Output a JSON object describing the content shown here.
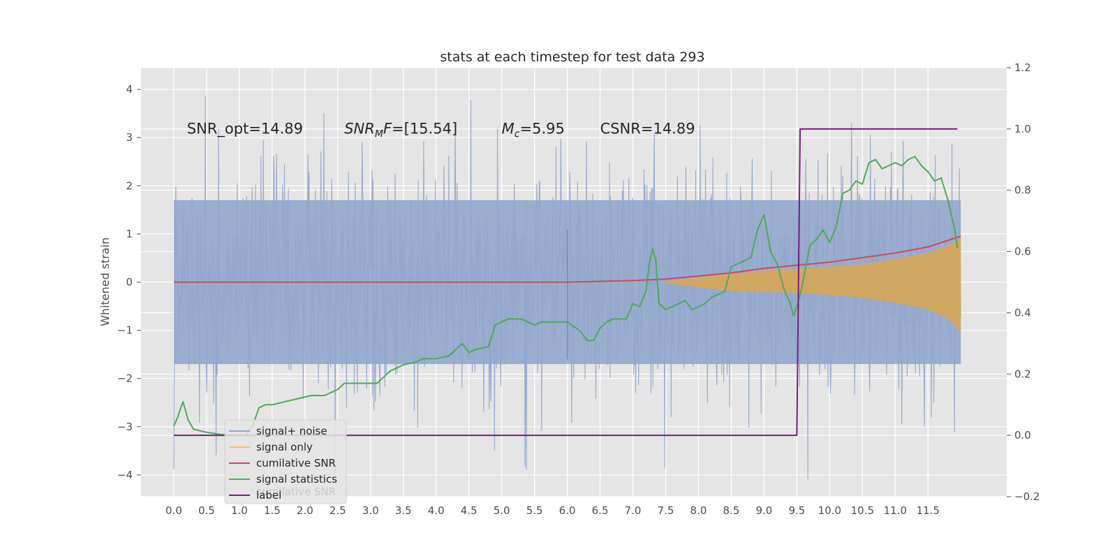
{
  "chart_data": {
    "type": "line",
    "title": "stats at each timestep for test data 293",
    "ylabel": "Whitened strain",
    "xlabel": "",
    "xlim": [
      -0.5,
      12.7
    ],
    "ylim": [
      -4.45,
      4.45
    ],
    "y2lim": [
      -0.2,
      1.2
    ],
    "x_ticks": [
      "0.0",
      "0.5",
      "1.0",
      "1.5",
      "2.0",
      "2.5",
      "3.0",
      "3.5",
      "4.0",
      "4.5",
      "5.0",
      "5.5",
      "6.0",
      "6.5",
      "7.0",
      "7.5",
      "8.0",
      "8.5",
      "9.0",
      "9.5",
      "10.0",
      "10.5",
      "11.0",
      "11.5"
    ],
    "y_ticks": [
      "4",
      "3",
      "2",
      "1",
      "0",
      "−1",
      "−2",
      "−3",
      "−4"
    ],
    "y2_ticks": [
      "1.2",
      "1.0",
      "0.8",
      "0.6",
      "0.4",
      "0.2",
      "0.0",
      "−0.2"
    ],
    "annotations": [
      {
        "label": "SNR_opt=14.89",
        "x": 0.2,
        "y": 3.2
      },
      {
        "label": "SNR_MF=[15.54]",
        "x": 2.6,
        "y": 3.2
      },
      {
        "label": "M_c=5.95",
        "x": 5.0,
        "y": 3.2
      },
      {
        "label": "CSNR=14.89",
        "x": 6.5,
        "y": 3.2
      }
    ],
    "legend": {
      "position": "lower-left",
      "entries": [
        {
          "label": "signal+ noise",
          "color": "#92a7cc"
        },
        {
          "label": "signal only",
          "color": "#f5c842"
        },
        {
          "label": "cumilative SNR",
          "color": "#d1494e"
        },
        {
          "label": "signal statistics",
          "color": "#4fa95a"
        },
        {
          "label": "label",
          "color": "#7a1a80"
        }
      ],
      "ghost_text": "cumilative SNR"
    },
    "grid": true,
    "series": [
      {
        "name": "signal+ noise",
        "axis": "left",
        "kind": "noise-band",
        "x_range": [
          0.0,
          12.0
        ],
        "typical_peak": 2.4,
        "spike_max": 4.1,
        "spike_min": -4.1,
        "center_line_x": 6.0,
        "center_line_range": [
          -1.6,
          1.1
        ]
      },
      {
        "name": "signal only",
        "axis": "left",
        "kind": "chirp-envelope",
        "x": [
          7.5,
          8.0,
          8.5,
          9.0,
          9.5,
          10.0,
          10.5,
          11.0,
          11.5,
          11.8,
          12.0
        ],
        "upper": [
          0.02,
          0.1,
          0.18,
          0.24,
          0.28,
          0.32,
          0.38,
          0.48,
          0.62,
          0.76,
          0.92
        ],
        "lower": [
          -0.02,
          -0.1,
          -0.18,
          -0.2,
          -0.22,
          -0.26,
          -0.32,
          -0.42,
          -0.56,
          -0.75,
          -1.05
        ]
      },
      {
        "name": "cumilative SNR",
        "axis": "right",
        "x": [
          0.0,
          6.0,
          7.0,
          7.5,
          8.0,
          8.5,
          9.0,
          9.5,
          10.0,
          10.5,
          11.0,
          11.5,
          12.0
        ],
        "values": [
          0.5,
          0.5,
          0.505,
          0.51,
          0.52,
          0.53,
          0.545,
          0.555,
          0.565,
          0.58,
          0.595,
          0.615,
          0.65
        ]
      },
      {
        "name": "signal statistics",
        "axis": "right",
        "x": [
          0.0,
          0.06,
          0.14,
          0.22,
          0.3,
          0.5,
          0.8,
          1.1,
          1.2,
          1.3,
          1.4,
          1.5,
          1.7,
          1.9,
          2.1,
          2.3,
          2.5,
          2.6,
          2.9,
          3.1,
          3.2,
          3.3,
          3.5,
          3.7,
          3.8,
          4.0,
          4.2,
          4.4,
          4.5,
          4.6,
          4.8,
          4.9,
          5.1,
          5.3,
          5.5,
          5.6,
          5.8,
          6.0,
          6.2,
          6.3,
          6.4,
          6.5,
          6.6,
          6.7,
          6.8,
          6.9,
          7.0,
          7.1,
          7.2,
          7.25,
          7.3,
          7.35,
          7.4,
          7.5,
          7.6,
          7.7,
          7.8,
          7.9,
          8.0,
          8.1,
          8.2,
          8.4,
          8.5,
          8.6,
          8.7,
          8.8,
          8.9,
          9.0,
          9.1,
          9.2,
          9.3,
          9.4,
          9.45,
          9.5,
          9.55,
          9.6,
          9.7,
          9.8,
          9.9,
          10.0,
          10.1,
          10.2,
          10.3,
          10.4,
          10.5,
          10.6,
          10.7,
          10.8,
          10.9,
          11.0,
          11.1,
          11.2,
          11.3,
          11.4,
          11.5,
          11.6,
          11.7,
          11.8,
          11.9,
          11.95
        ],
        "values": [
          0.03,
          0.06,
          0.11,
          0.05,
          0.02,
          0.01,
          0.0,
          0.0,
          0.03,
          0.09,
          0.1,
          0.1,
          0.11,
          0.12,
          0.13,
          0.13,
          0.15,
          0.17,
          0.17,
          0.17,
          0.19,
          0.21,
          0.23,
          0.24,
          0.25,
          0.25,
          0.26,
          0.3,
          0.27,
          0.28,
          0.29,
          0.36,
          0.38,
          0.38,
          0.36,
          0.37,
          0.37,
          0.37,
          0.34,
          0.31,
          0.31,
          0.35,
          0.37,
          0.38,
          0.38,
          0.38,
          0.43,
          0.42,
          0.47,
          0.56,
          0.61,
          0.57,
          0.43,
          0.41,
          0.42,
          0.43,
          0.44,
          0.41,
          0.42,
          0.43,
          0.45,
          0.47,
          0.55,
          0.56,
          0.57,
          0.58,
          0.67,
          0.72,
          0.6,
          0.56,
          0.48,
          0.43,
          0.39,
          0.42,
          0.46,
          0.51,
          0.62,
          0.64,
          0.67,
          0.63,
          0.68,
          0.79,
          0.8,
          0.83,
          0.82,
          0.89,
          0.9,
          0.87,
          0.88,
          0.89,
          0.88,
          0.9,
          0.91,
          0.88,
          0.86,
          0.83,
          0.84,
          0.77,
          0.68,
          0.61
        ]
      },
      {
        "name": "label",
        "axis": "right",
        "x": [
          0.0,
          9.5,
          9.55,
          11.95
        ],
        "values": [
          0.0,
          0.0,
          1.0,
          1.0
        ]
      }
    ]
  },
  "colors": {
    "plot_bg": "#e5e5e5",
    "grid": "#ffffff",
    "noise": "#92a7cc",
    "signal_fill": "#d4a85c",
    "signal_line": "#f5c842",
    "cumsnr": "#d1494e",
    "stats": "#4fa95a",
    "label": "#7a1a80"
  }
}
